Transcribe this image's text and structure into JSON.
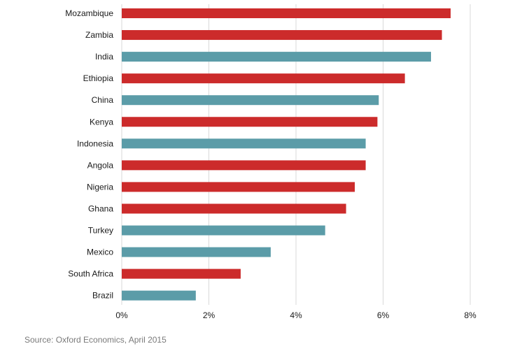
{
  "chart_data": {
    "type": "bar",
    "orientation": "horizontal",
    "categories": [
      "Mozambique",
      "Zambia",
      "India",
      "Ethiopia",
      "China",
      "Kenya",
      "Indonesia",
      "Angola",
      "Nigeria",
      "Ghana",
      "Turkey",
      "Mexico",
      "South Africa",
      "Brazil"
    ],
    "values": [
      7.55,
      7.35,
      7.1,
      6.5,
      5.9,
      5.87,
      5.6,
      5.6,
      5.35,
      5.15,
      4.67,
      3.42,
      2.73,
      1.7
    ],
    "bar_colors": [
      "#cc2b2b",
      "#cc2b2b",
      "#5b9ca8",
      "#cc2b2b",
      "#5b9ca8",
      "#cc2b2b",
      "#5b9ca8",
      "#cc2b2b",
      "#cc2b2b",
      "#cc2b2b",
      "#5b9ca8",
      "#5b9ca8",
      "#cc2b2b",
      "#5b9ca8"
    ],
    "xlim": [
      0,
      8
    ],
    "xticks": [
      0,
      2,
      4,
      6,
      8
    ],
    "xtick_labels": [
      "0%",
      "2%",
      "4%",
      "6%",
      "8%"
    ],
    "grid": "vertical",
    "title": "",
    "xlabel": "",
    "ylabel": ""
  },
  "source": "Source: Oxford Economics, April 2015",
  "colors": {
    "africa": "#cc2b2b",
    "other": "#5b9ca8",
    "grid": "#d9d9d9",
    "axis_text": "#1a1a1a",
    "source_text": "#7a7a7a"
  }
}
